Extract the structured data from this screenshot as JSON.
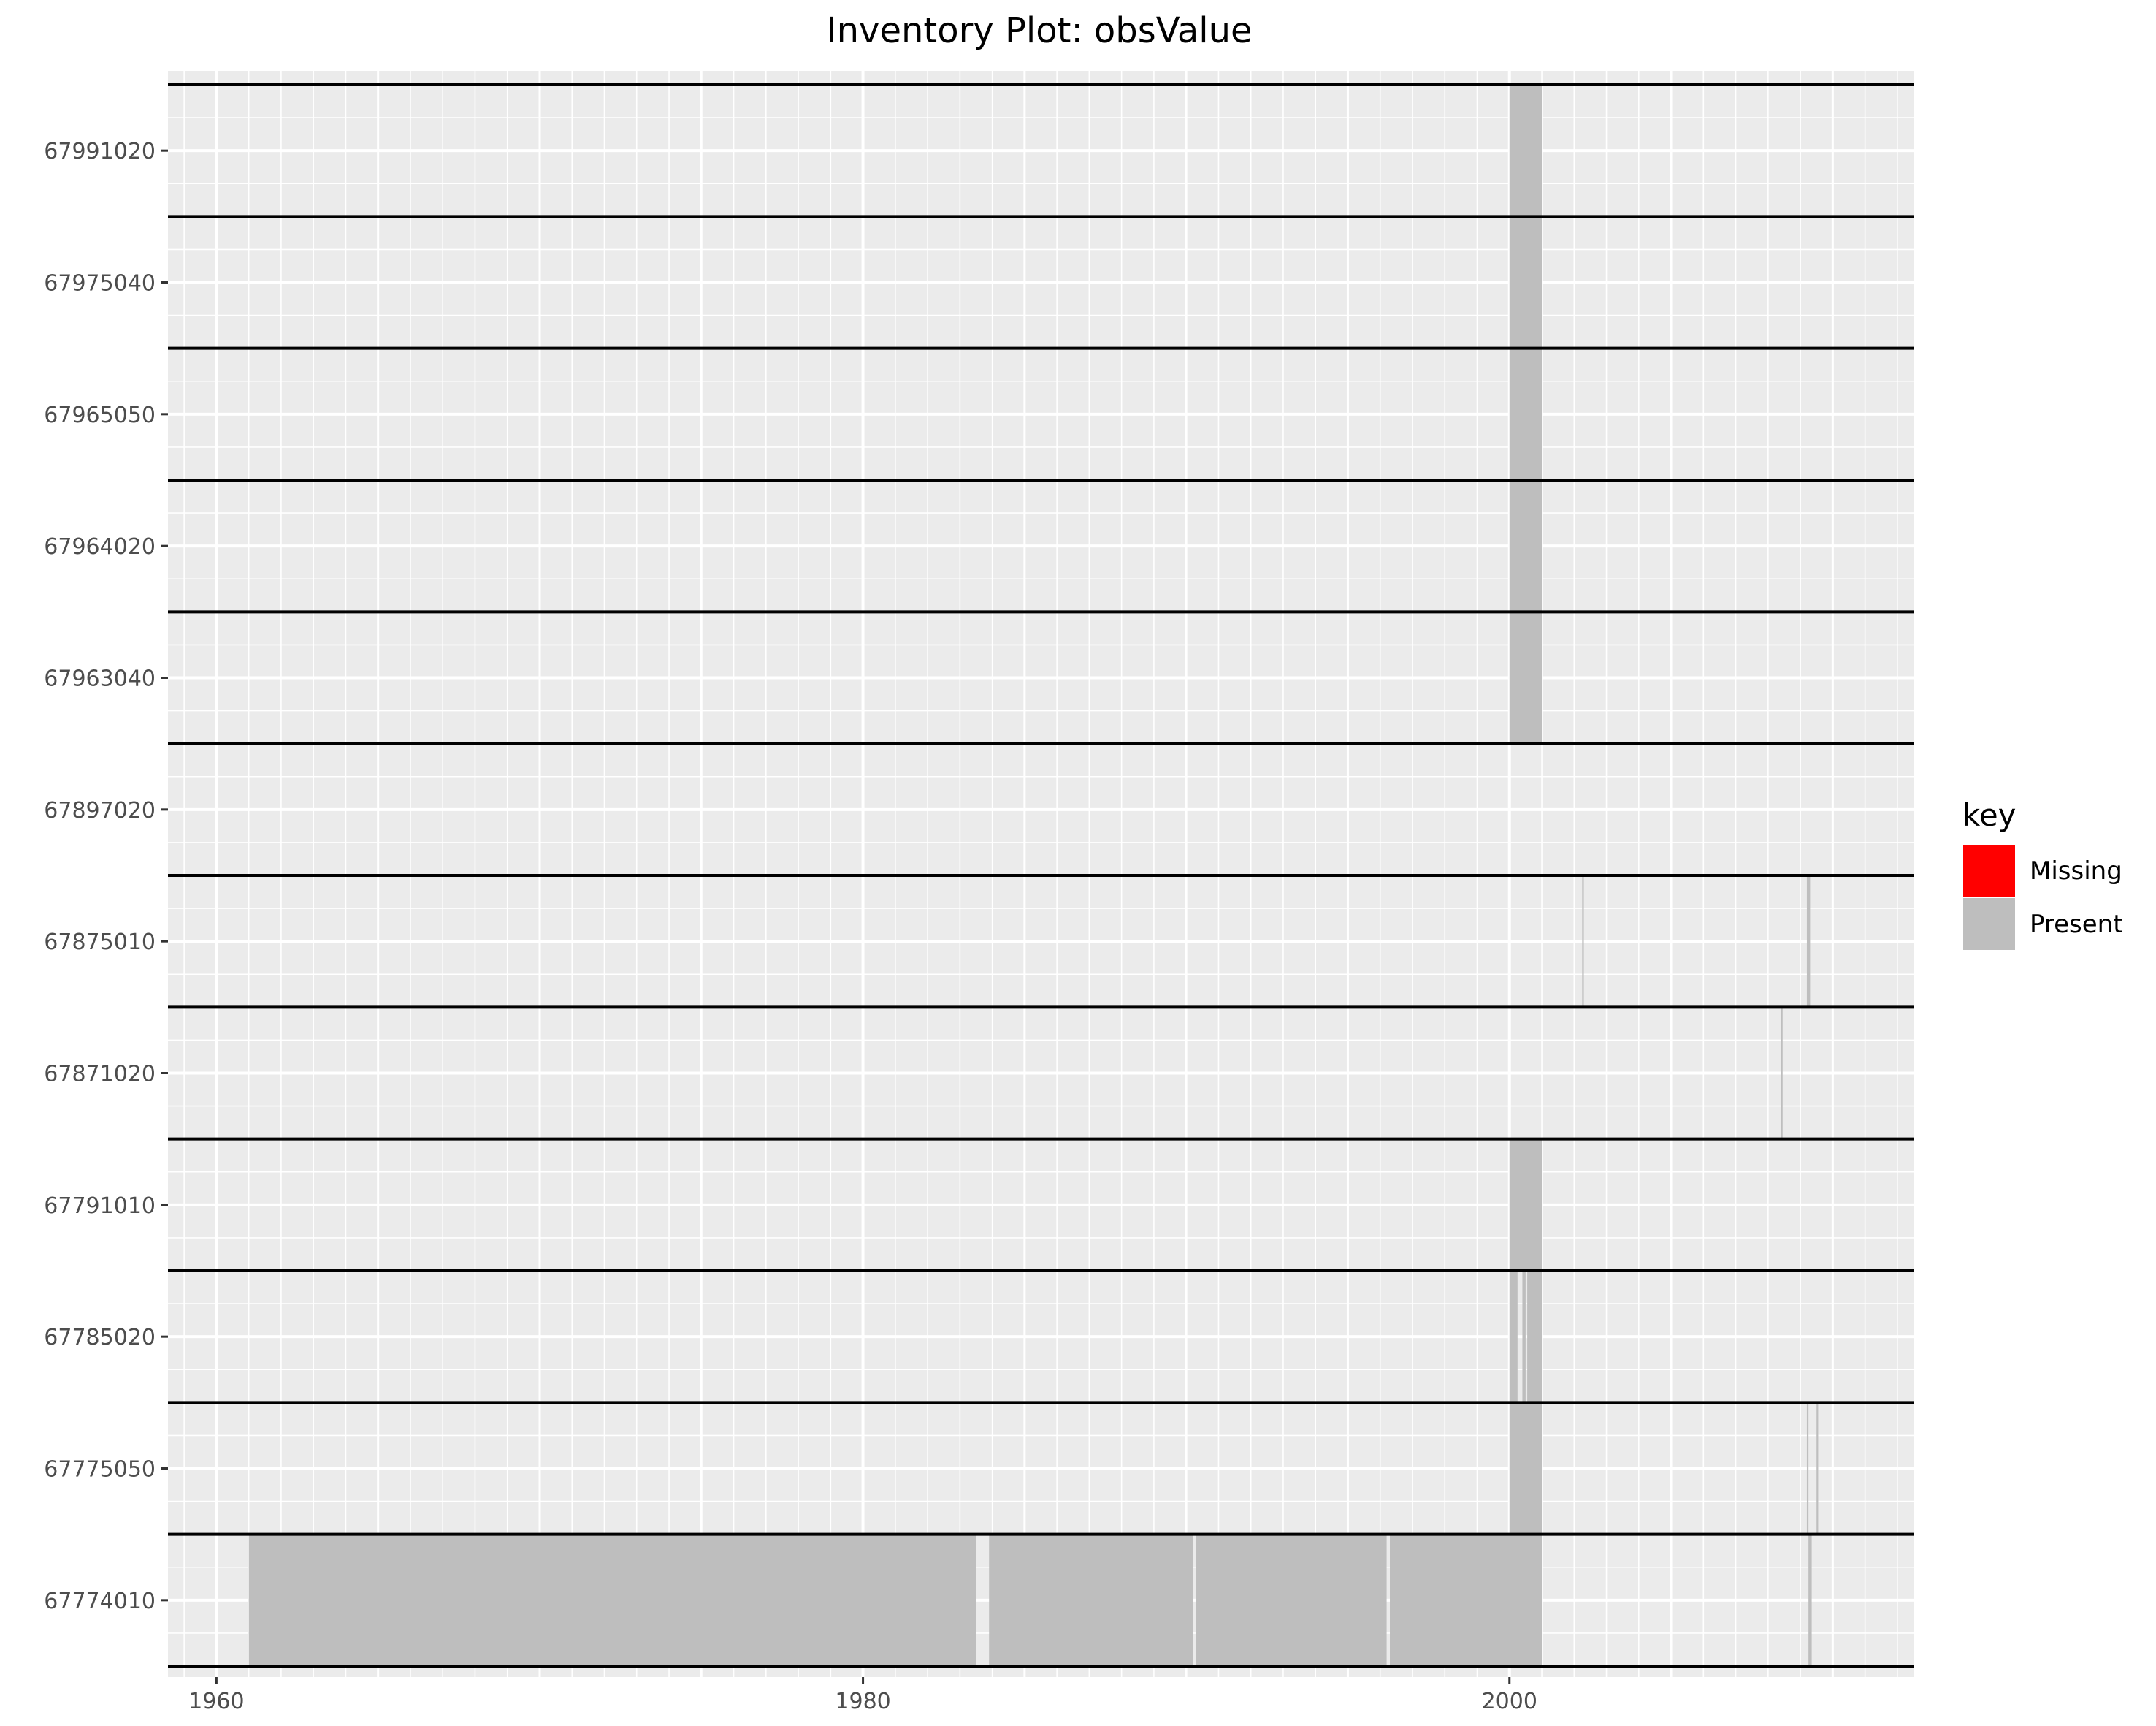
{
  "chart_data": {
    "type": "bar",
    "title": "Inventory Plot: obsValue",
    "xlabel": "",
    "ylabel": "",
    "xlim": [
      1958.5,
      2012.5
    ],
    "x_ticks": [
      1960,
      1980,
      2000
    ],
    "categories": [
      "67991020",
      "67975040",
      "67965050",
      "67964020",
      "67963040",
      "67897020",
      "67875010",
      "67871020",
      "67791010",
      "67785020",
      "67775050",
      "67774010"
    ],
    "legend": {
      "title": "key",
      "position": "right",
      "entries": [
        {
          "label": "Missing",
          "color": "#ff0000"
        },
        {
          "label": "Present",
          "color": "#bebebe"
        }
      ]
    },
    "series": [
      {
        "category": "67991020",
        "key": "Present",
        "intervals": [
          [
            2000.0,
            2001.0
          ]
        ]
      },
      {
        "category": "67975040",
        "key": "Present",
        "intervals": [
          [
            2000.0,
            2001.0
          ]
        ]
      },
      {
        "category": "67965050",
        "key": "Present",
        "intervals": [
          [
            2000.0,
            2001.0
          ]
        ]
      },
      {
        "category": "67964020",
        "key": "Present",
        "intervals": [
          [
            2000.0,
            2001.0
          ]
        ]
      },
      {
        "category": "67963040",
        "key": "Present",
        "intervals": [
          [
            2000.0,
            2001.0
          ]
        ]
      },
      {
        "category": "67897020",
        "key": "Present",
        "intervals": []
      },
      {
        "category": "67875010",
        "key": "Present",
        "intervals": [
          [
            2002.25,
            2002.3
          ],
          [
            2009.2,
            2009.3
          ]
        ]
      },
      {
        "category": "67871020",
        "key": "Present",
        "intervals": [
          [
            2008.4,
            2008.45
          ]
        ]
      },
      {
        "category": "67791010",
        "key": "Present",
        "intervals": [
          [
            2000.0,
            2001.0
          ]
        ]
      },
      {
        "category": "67785020",
        "key": "Present",
        "intervals": [
          [
            2000.0,
            2000.25
          ],
          [
            2000.4,
            2000.5
          ],
          [
            2000.55,
            2001.0
          ]
        ]
      },
      {
        "category": "67775050",
        "key": "Present",
        "intervals": [
          [
            2000.0,
            2001.0
          ],
          [
            2009.2,
            2009.25
          ],
          [
            2009.5,
            2009.55
          ]
        ]
      },
      {
        "category": "67774010",
        "key": "Present",
        "intervals": [
          [
            1961.0,
            1983.5
          ],
          [
            1983.9,
            1990.2
          ],
          [
            1990.3,
            1996.2
          ],
          [
            1996.3,
            2001.0
          ],
          [
            2009.25,
            2009.35
          ]
        ]
      }
    ],
    "colors": {
      "panel": "#ebebeb",
      "grid": "#ffffff",
      "separator": "#000000",
      "present": "#bebebe",
      "missing": "#ff0000",
      "axis_text": "#4d4d4d",
      "title_text": "#000000"
    }
  }
}
